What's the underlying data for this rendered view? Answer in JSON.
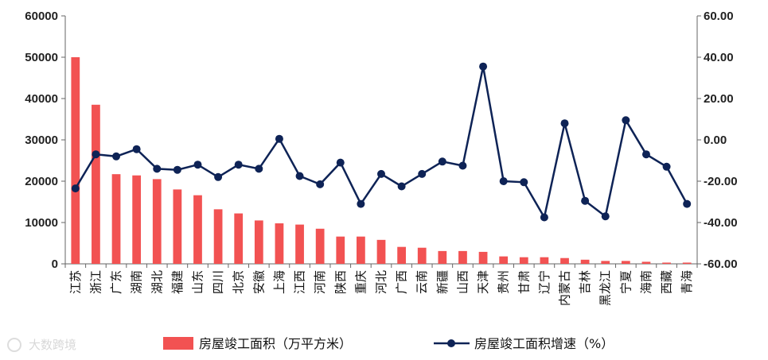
{
  "chart_data": {
    "type": "bar",
    "categories": [
      "江苏",
      "浙江",
      "广东",
      "湖南",
      "湖北",
      "福建",
      "山东",
      "四川",
      "北京",
      "安徽",
      "上海",
      "江西",
      "河南",
      "陕西",
      "重庆",
      "河北",
      "广西",
      "云南",
      "新疆",
      "山西",
      "天津",
      "贵州",
      "甘肃",
      "辽宁",
      "内蒙古",
      "吉林",
      "黑龙江",
      "宁夏",
      "海南",
      "西藏",
      "青海"
    ],
    "series": [
      {
        "name": "房屋竣工面积（万平方米）",
        "type": "bar",
        "axis": "left",
        "color": "#f25252",
        "values": [
          50000,
          38500,
          21700,
          21400,
          20500,
          18000,
          16600,
          13200,
          12200,
          10500,
          9800,
          9500,
          8500,
          6600,
          6600,
          5800,
          4100,
          3900,
          3100,
          3100,
          2900,
          1800,
          1600,
          1600,
          1400,
          1000,
          700,
          700,
          500,
          300,
          300
        ]
      },
      {
        "name": "房屋竣工面积增速（%）",
        "type": "line",
        "axis": "right",
        "color": "#0e2356",
        "values": [
          -23.5,
          -7,
          -8,
          -4.5,
          -14,
          -14.5,
          -12,
          -18,
          -12,
          -14,
          0.5,
          -17.5,
          -21.5,
          -11,
          -31,
          -16.5,
          -22.5,
          -16.5,
          -10.5,
          -12.5,
          35.5,
          -20,
          -20.5,
          -37.5,
          8,
          -29.5,
          -37,
          9.5,
          -7,
          -13,
          -31
        ]
      }
    ],
    "y_left": {
      "min": 0,
      "max": 60000,
      "step": 10000,
      "ticks": [
        "0",
        "10000",
        "20000",
        "30000",
        "40000",
        "50000",
        "60000"
      ]
    },
    "y_right": {
      "min": -60,
      "max": 60,
      "step": 20,
      "ticks": [
        "-60.00",
        "-40.00",
        "-20.00",
        "0.00",
        "20.00",
        "40.00",
        "60.00"
      ]
    },
    "grid": false,
    "legend_position": "bottom"
  },
  "watermark": "大数跨境"
}
